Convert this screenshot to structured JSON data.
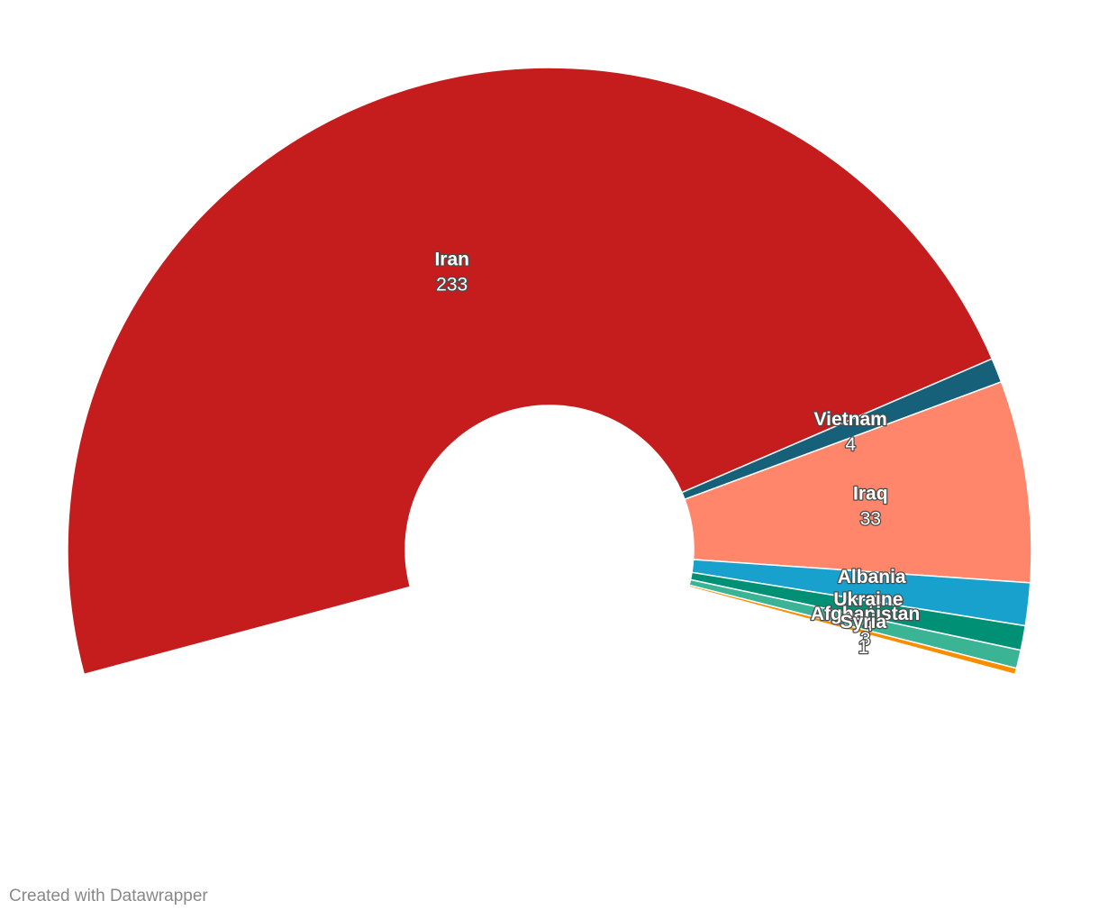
{
  "chart_data": {
    "type": "pie",
    "variant": "semi-donut",
    "start_angle_deg": 255,
    "end_angle_deg": 105,
    "categories": [
      "Iran",
      "Vietnam",
      "Iraq",
      "Albania",
      "Ukraine",
      "Afghanistan",
      "Syria"
    ],
    "values": [
      233,
      4,
      33,
      7,
      4,
      3,
      1
    ],
    "colors": [
      "#c51d1d",
      "#17607a",
      "#ff866b",
      "#18a1cd",
      "#009076",
      "#3bb395",
      "#fa8c00"
    ],
    "title": "",
    "legend": "none"
  },
  "footer": {
    "credit": "Created with Datawrapper"
  }
}
